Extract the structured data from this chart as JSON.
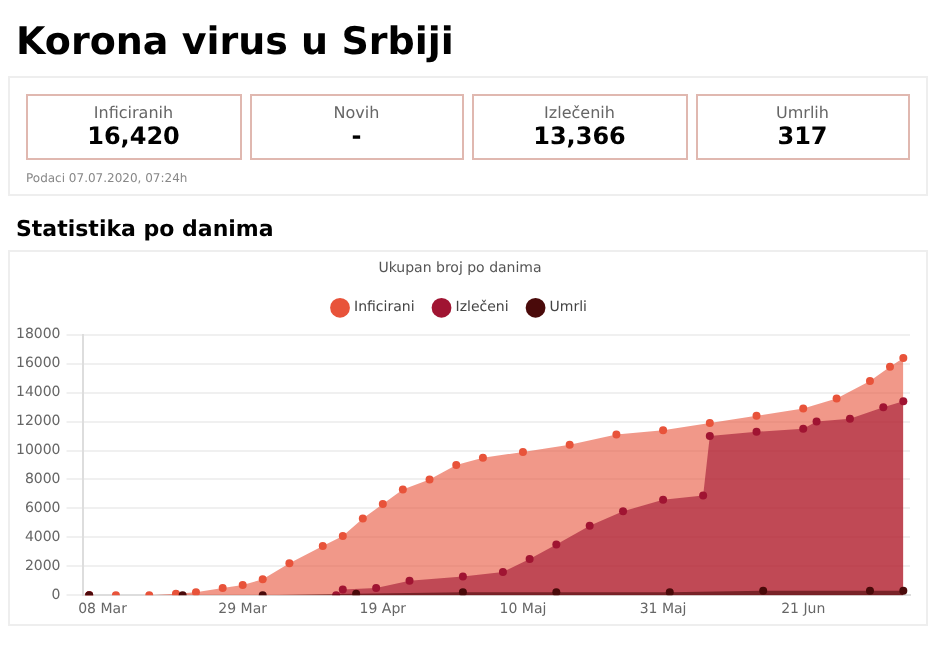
{
  "chart_data": [
    {
      "type": "other",
      "title": "Korona virus u Srbiji",
      "annotations": [
        "Inficiranih",
        "16,420",
        "Novih",
        "-",
        "Izlečenih",
        "13,366",
        "Umrlih",
        "317",
        "Podaci 07.07.2020, 07:24h"
      ]
    },
    {
      "type": "area",
      "title": "Statistika po danima",
      "subtitle": "Ukupan broj po danima",
      "legend": "top",
      "grid": "y",
      "marker": "circle",
      "ylim": [
        0,
        18000
      ],
      "yticks": [
        0,
        2000,
        4000,
        6000,
        8000,
        10000,
        12000,
        14000,
        16000,
        18000
      ],
      "xlim": [
        "2020-03-05",
        "2020-07-07"
      ],
      "xticks": [
        {
          "value": "2020-03-08",
          "label": "08 Mar"
        },
        {
          "value": "2020-03-29",
          "label": "29 Mar"
        },
        {
          "value": "2020-04-19",
          "label": "19 Apr"
        },
        {
          "value": "2020-05-10",
          "label": "10 Maj"
        },
        {
          "value": "2020-05-31",
          "label": "31 Maj"
        },
        {
          "value": "2020-06-21",
          "label": "21 Jun"
        }
      ],
      "series": [
        {
          "name": "Inficirani",
          "color": "#e8533a",
          "x": [
            "2020-03-06",
            "2020-03-10",
            "2020-03-15",
            "2020-03-19",
            "2020-03-22",
            "2020-03-26",
            "2020-03-29",
            "2020-04-01",
            "2020-04-05",
            "2020-04-10",
            "2020-04-13",
            "2020-04-16",
            "2020-04-19",
            "2020-04-22",
            "2020-04-26",
            "2020-04-30",
            "2020-05-04",
            "2020-05-10",
            "2020-05-17",
            "2020-05-24",
            "2020-05-31",
            "2020-06-07",
            "2020-06-14",
            "2020-06-21",
            "2020-06-26",
            "2020-07-01",
            "2020-07-04",
            "2020-07-06"
          ],
          "values": [
            0,
            0,
            0,
            100,
            200,
            500,
            700,
            1100,
            2200,
            3400,
            4100,
            5300,
            6300,
            7300,
            8000,
            9000,
            9500,
            9900,
            10400,
            11100,
            11400,
            11900,
            12400,
            12900,
            13600,
            14800,
            15800,
            16400
          ]
        },
        {
          "name": "Izlečeni",
          "color": "#a01432",
          "x": [
            "2020-03-06",
            "2020-04-12",
            "2020-04-13",
            "2020-04-18",
            "2020-04-23",
            "2020-05-01",
            "2020-05-07",
            "2020-05-11",
            "2020-05-15",
            "2020-05-20",
            "2020-05-25",
            "2020-05-31",
            "2020-06-06",
            "2020-06-07",
            "2020-06-14",
            "2020-06-21",
            "2020-06-23",
            "2020-06-28",
            "2020-07-03",
            "2020-07-06"
          ],
          "values": [
            0,
            0,
            400,
            500,
            1000,
            1300,
            1600,
            2500,
            3500,
            4800,
            5800,
            6600,
            6900,
            11000,
            11300,
            11500,
            12000,
            12200,
            13000,
            13400
          ]
        },
        {
          "name": "Umrli",
          "color": "#4a0a0a",
          "x": [
            "2020-03-06",
            "2020-03-20",
            "2020-04-01",
            "2020-04-15",
            "2020-05-01",
            "2020-05-15",
            "2020-06-01",
            "2020-06-15",
            "2020-07-01",
            "2020-07-06"
          ],
          "values": [
            0,
            0,
            0,
            100,
            200,
            200,
            200,
            300,
            300,
            300
          ]
        }
      ]
    }
  ]
}
